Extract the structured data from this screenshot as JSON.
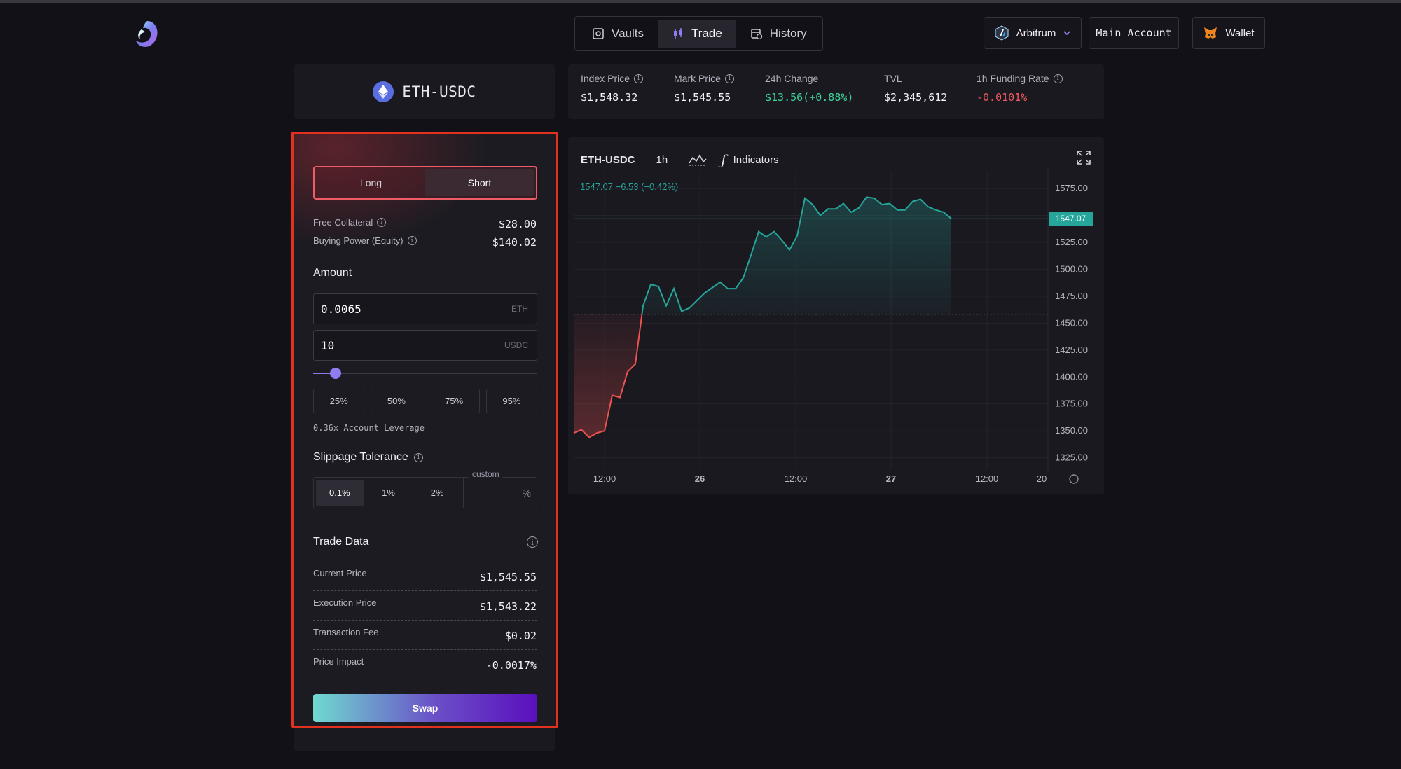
{
  "nav": {
    "items": [
      {
        "label": "Vaults",
        "icon": "vault-icon"
      },
      {
        "label": "Trade",
        "icon": "candlestick-icon"
      },
      {
        "label": "History",
        "icon": "history-icon"
      }
    ],
    "active": "Trade"
  },
  "header": {
    "chain": "Arbitrum",
    "account": "Main Account",
    "wallet": "Wallet"
  },
  "market": {
    "symbol": "ETH-USDC",
    "stats": [
      {
        "label": "Index Price",
        "value": "$1,548.32",
        "info": true
      },
      {
        "label": "Mark Price",
        "value": "$1,545.55",
        "info": true
      },
      {
        "label": "24h Change",
        "value": "$13.56(+0.88%)",
        "info": false,
        "color": "#3fd39a"
      },
      {
        "label": "TVL",
        "value": "$2,345,612",
        "info": false
      },
      {
        "label": "1h Funding Rate",
        "value": "-0.0101%",
        "info": true,
        "color": "#ef5a5f"
      }
    ]
  },
  "trade": {
    "side": {
      "long": "Long",
      "short": "Short",
      "selected": "Short"
    },
    "free_collateral": {
      "label": "Free Collateral",
      "value": "$28.00"
    },
    "buying_power": {
      "label": "Buying Power (Equity)",
      "value": "$140.02"
    },
    "amount": {
      "title": "Amount",
      "eth_value": "0.0065",
      "eth_unit": "ETH",
      "usdc_value": "10",
      "usdc_unit": "USDC",
      "slider_fraction": 0.08
    },
    "percent_buttons": [
      "25%",
      "50%",
      "75%",
      "95%"
    ],
    "leverage": "0.36x Account Leverage",
    "slippage": {
      "title": "Slippage Tolerance",
      "options": [
        "0.1%",
        "1%",
        "2%"
      ],
      "selected": "0.1%",
      "custom_label": "custom",
      "custom_unit": "%"
    },
    "trade_data": {
      "title": "Trade Data",
      "rows": [
        {
          "label": "Current Price",
          "value": "$1,545.55"
        },
        {
          "label": "Execution Price",
          "value": "$1,543.22"
        },
        {
          "label": "Transaction Fee",
          "value": "$0.02"
        },
        {
          "label": "Price Impact",
          "value": "-0.0017%"
        }
      ]
    },
    "swap_label": "Swap"
  },
  "chart": {
    "symbol": "ETH-USDC",
    "interval": "1h",
    "indicators_label": "Indicators",
    "legend": "1547.07  −6.53 (−0.42%)",
    "last_price": "1547.07",
    "colors": {
      "up": "#26a69a",
      "down": "#ef5350"
    }
  },
  "chart_data": {
    "type": "area",
    "ylim": [
      1315,
      1590
    ],
    "y_ticks": [
      1575.0,
      1550.0,
      1525.0,
      1500.0,
      1475.0,
      1450.0,
      1425.0,
      1400.0,
      1375.0,
      1350.0,
      1325.0
    ],
    "x_tick_labels": [
      "12:00",
      "26",
      "12:00",
      "27",
      "12:00",
      "20"
    ],
    "baseline": 1458,
    "series": [
      {
        "values": [
          1348,
          1351,
          1344,
          1348,
          1350,
          1383,
          1381,
          1405,
          1412,
          1466,
          1486,
          1484,
          1466,
          1482,
          1461,
          1464,
          1471,
          1478,
          1483,
          1488,
          1482,
          1482,
          1492,
          1513,
          1535,
          1530,
          1535,
          1527,
          1518,
          1531,
          1566,
          1560,
          1550,
          1556,
          1556,
          1561,
          1553,
          1557,
          1567,
          1566,
          1560,
          1561,
          1555,
          1555,
          1563,
          1565,
          1558,
          1555,
          1553,
          1547
        ]
      }
    ]
  }
}
